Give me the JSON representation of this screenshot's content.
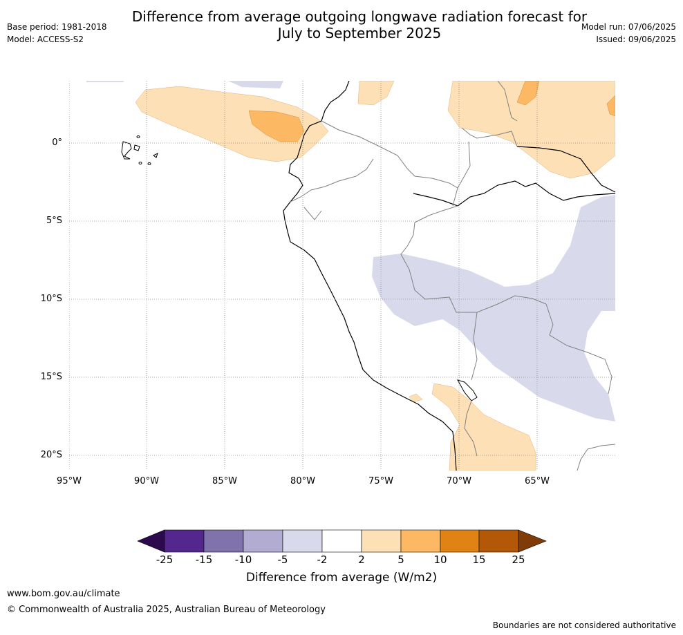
{
  "header": {
    "title_line1": "Difference from average outgoing longwave radiation forecast for",
    "title_line2": "July to September 2025",
    "base_period": "Base period: 1981-2018",
    "model": "Model: ACCESS-S2",
    "model_run": "Model run: 07/06/2025",
    "issued": "Issued: 09/06/2025"
  },
  "map": {
    "latitude_labels": [
      "0°",
      "5°S",
      "10°S",
      "15°S",
      "20°S"
    ],
    "longitude_labels": [
      "95°W",
      "90°W",
      "85°W",
      "80°W",
      "75°W",
      "70°W",
      "65°W"
    ]
  },
  "colorbar": {
    "title": "Difference from average (W/m2)",
    "ticks": [
      "-25",
      "-15",
      "-10",
      "-5",
      "-2",
      "2",
      "5",
      "10",
      "15",
      "25"
    ],
    "colors": [
      "#2d0a4e",
      "#54278f",
      "#8073ac",
      "#b2abd2",
      "#d8daeb",
      "#ffffff",
      "#fee0b6",
      "#fdb863",
      "#e08214",
      "#b35806",
      "#7f3b08"
    ]
  },
  "footer": {
    "url": "www.bom.gov.au/climate",
    "copyright": "© Commonwealth of Australia 2025, Australian Bureau of Meteorology",
    "disclaimer": "Boundaries are not considered authoritative"
  }
}
